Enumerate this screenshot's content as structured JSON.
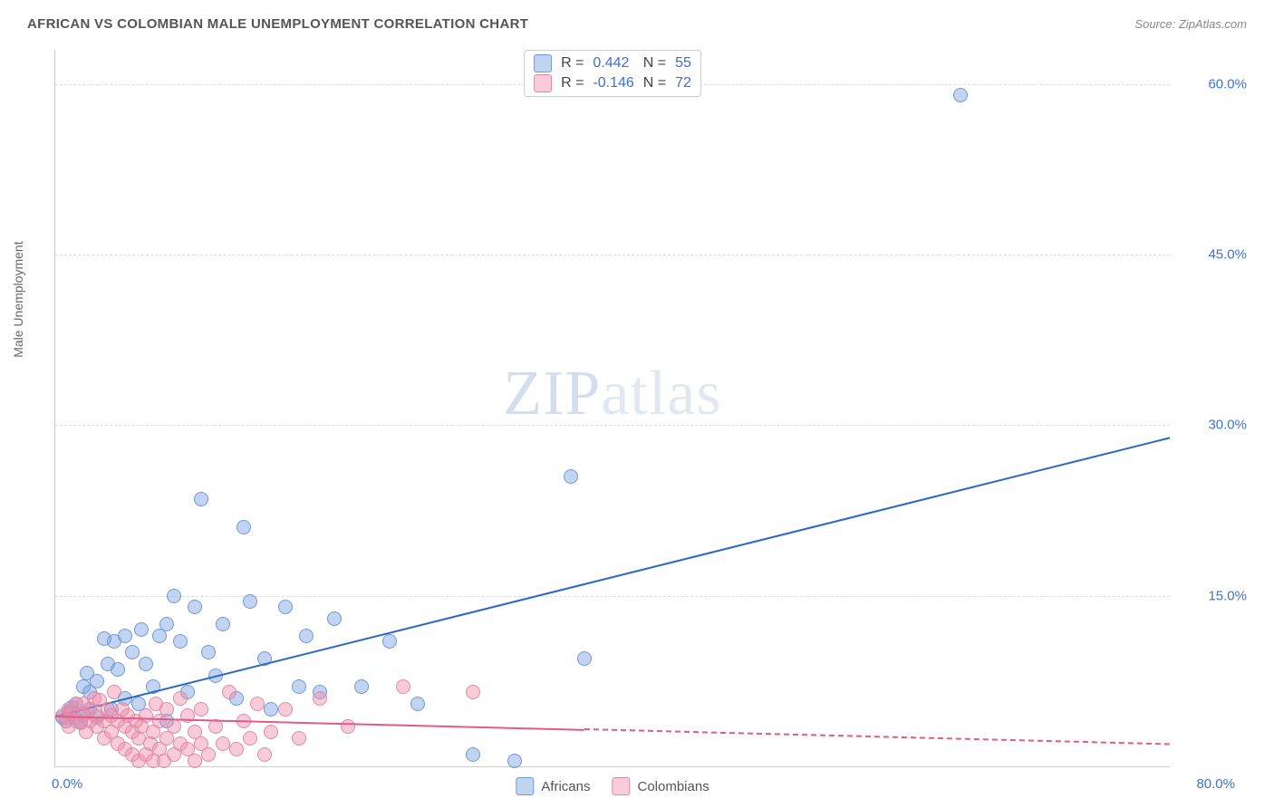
{
  "title": "AFRICAN VS COLOMBIAN MALE UNEMPLOYMENT CORRELATION CHART",
  "source_label": "Source:",
  "source_name": "ZipAtlas.com",
  "ylabel": "Male Unemployment",
  "watermark_zip": "ZIP",
  "watermark_atlas": "atlas",
  "chart": {
    "type": "scatter",
    "xlim": [
      0,
      80
    ],
    "ylim": [
      0,
      63
    ],
    "xtick_min_label": "0.0%",
    "xtick_max_label": "80.0%",
    "yticks": [
      {
        "v": 15,
        "label": "15.0%"
      },
      {
        "v": 30,
        "label": "30.0%"
      },
      {
        "v": 45,
        "label": "45.0%"
      },
      {
        "v": 60,
        "label": "60.0%"
      }
    ],
    "series": [
      {
        "name": "Africans",
        "color_fill": "rgba(120,160,225,0.45)",
        "color_stroke": "#6d9ad6",
        "trend_color": "#2b68c5",
        "r_label": "R  =",
        "r_value": "0.442",
        "n_label": "N  =",
        "n_value": "55",
        "text_color": "#3b72d0",
        "swatch_fill": "rgba(140,175,230,0.55)",
        "swatch_border": "#6d9ad6",
        "marker_radius": 8,
        "trend": {
          "x1": 0,
          "y1": 4.5,
          "x2": 80,
          "y2": 29,
          "dash": false,
          "solid_until": 80
        },
        "points": [
          [
            0.5,
            4.3
          ],
          [
            0.8,
            4.0
          ],
          [
            1.0,
            4.8
          ],
          [
            1.2,
            5.2
          ],
          [
            1.5,
            4.2
          ],
          [
            1.5,
            5.5
          ],
          [
            1.8,
            3.9
          ],
          [
            2.0,
            4.6
          ],
          [
            2.0,
            7.0
          ],
          [
            2.3,
            8.2
          ],
          [
            2.5,
            5.0
          ],
          [
            2.5,
            6.5
          ],
          [
            3.0,
            4.3
          ],
          [
            3.0,
            7.5
          ],
          [
            3.5,
            11.2
          ],
          [
            3.8,
            9.0
          ],
          [
            4.0,
            5.0
          ],
          [
            4.2,
            11.0
          ],
          [
            4.5,
            8.5
          ],
          [
            5.0,
            6.0
          ],
          [
            5.0,
            11.5
          ],
          [
            5.5,
            10.0
          ],
          [
            6.0,
            5.5
          ],
          [
            6.2,
            12.0
          ],
          [
            6.5,
            9.0
          ],
          [
            7.0,
            7.0
          ],
          [
            7.5,
            11.5
          ],
          [
            8.0,
            4.0
          ],
          [
            8.0,
            12.5
          ],
          [
            8.5,
            15.0
          ],
          [
            9.0,
            11.0
          ],
          [
            9.5,
            6.5
          ],
          [
            10.0,
            14.0
          ],
          [
            10.5,
            23.5
          ],
          [
            11.0,
            10.0
          ],
          [
            11.5,
            8.0
          ],
          [
            12.0,
            12.5
          ],
          [
            13.0,
            6.0
          ],
          [
            13.5,
            21.0
          ],
          [
            14.0,
            14.5
          ],
          [
            15.0,
            9.5
          ],
          [
            15.5,
            5.0
          ],
          [
            16.5,
            14.0
          ],
          [
            17.5,
            7.0
          ],
          [
            18.0,
            11.5
          ],
          [
            19.0,
            6.5
          ],
          [
            20.0,
            13.0
          ],
          [
            22.0,
            7.0
          ],
          [
            24.0,
            11.0
          ],
          [
            26.0,
            5.5
          ],
          [
            30.0,
            1.0
          ],
          [
            33.0,
            0.5
          ],
          [
            37.0,
            25.5
          ],
          [
            38.0,
            9.5
          ],
          [
            65.0,
            59.0
          ]
        ]
      },
      {
        "name": "Colombians",
        "color_fill": "rgba(240,140,170,0.45)",
        "color_stroke": "#e08aa5",
        "trend_color": "#e05a8a",
        "r_label": "R  =",
        "r_value": "-0.146",
        "n_label": "N  =",
        "n_value": "72",
        "text_color": "#3b72d0",
        "swatch_fill": "rgba(245,160,190,0.55)",
        "swatch_border": "#e08aa5",
        "marker_radius": 8,
        "trend": {
          "x1": 0,
          "y1": 4.5,
          "x2": 80,
          "y2": 2.0,
          "dash": true,
          "solid_until": 38
        },
        "points": [
          [
            0.5,
            4.5
          ],
          [
            0.8,
            4.2
          ],
          [
            1.0,
            5.0
          ],
          [
            1.0,
            3.5
          ],
          [
            1.2,
            4.8
          ],
          [
            1.5,
            4.0
          ],
          [
            1.5,
            5.5
          ],
          [
            1.8,
            3.8
          ],
          [
            2.0,
            4.5
          ],
          [
            2.0,
            5.5
          ],
          [
            2.2,
            3.0
          ],
          [
            2.5,
            4.0
          ],
          [
            2.5,
            5.0
          ],
          [
            2.8,
            6.0
          ],
          [
            3.0,
            3.5
          ],
          [
            3.0,
            4.5
          ],
          [
            3.2,
            5.8
          ],
          [
            3.5,
            2.5
          ],
          [
            3.5,
            4.0
          ],
          [
            3.8,
            5.0
          ],
          [
            4.0,
            3.0
          ],
          [
            4.0,
            4.5
          ],
          [
            4.2,
            6.5
          ],
          [
            4.5,
            2.0
          ],
          [
            4.5,
            4.0
          ],
          [
            4.8,
            5.0
          ],
          [
            5.0,
            1.5
          ],
          [
            5.0,
            3.5
          ],
          [
            5.2,
            4.5
          ],
          [
            5.5,
            1.0
          ],
          [
            5.5,
            3.0
          ],
          [
            5.8,
            4.0
          ],
          [
            6.0,
            0.5
          ],
          [
            6.0,
            2.5
          ],
          [
            6.2,
            3.5
          ],
          [
            6.5,
            1.0
          ],
          [
            6.5,
            4.5
          ],
          [
            6.8,
            2.0
          ],
          [
            7.0,
            0.5
          ],
          [
            7.0,
            3.0
          ],
          [
            7.2,
            5.5
          ],
          [
            7.5,
            1.5
          ],
          [
            7.5,
            4.0
          ],
          [
            7.8,
            0.5
          ],
          [
            8.0,
            2.5
          ],
          [
            8.0,
            5.0
          ],
          [
            8.5,
            1.0
          ],
          [
            8.5,
            3.5
          ],
          [
            9.0,
            2.0
          ],
          [
            9.0,
            6.0
          ],
          [
            9.5,
            1.5
          ],
          [
            9.5,
            4.5
          ],
          [
            10.0,
            0.5
          ],
          [
            10.0,
            3.0
          ],
          [
            10.5,
            2.0
          ],
          [
            10.5,
            5.0
          ],
          [
            11.0,
            1.0
          ],
          [
            11.5,
            3.5
          ],
          [
            12.0,
            2.0
          ],
          [
            12.5,
            6.5
          ],
          [
            13.0,
            1.5
          ],
          [
            13.5,
            4.0
          ],
          [
            14.0,
            2.5
          ],
          [
            14.5,
            5.5
          ],
          [
            15.0,
            1.0
          ],
          [
            15.5,
            3.0
          ],
          [
            16.5,
            5.0
          ],
          [
            17.5,
            2.5
          ],
          [
            19.0,
            6.0
          ],
          [
            21.0,
            3.5
          ],
          [
            25.0,
            7.0
          ],
          [
            30.0,
            6.5
          ]
        ]
      }
    ]
  }
}
